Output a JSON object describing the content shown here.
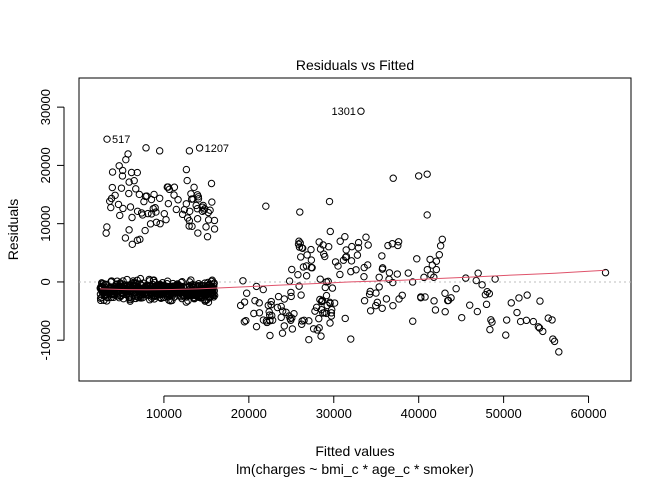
{
  "chart_data": {
    "type": "scatter",
    "title": "Residuals vs Fitted",
    "xlabel": "Fitted values",
    "ylabel": "Residuals",
    "subtitle": "lm(charges ~ bmi_c * age_c * smoker)",
    "xlim": [
      0,
      65000
    ],
    "ylim": [
      -17000,
      35000
    ],
    "x_ticks": [
      10000,
      20000,
      30000,
      40000,
      50000,
      60000
    ],
    "x_tick_labels": [
      "10000",
      "20000",
      "30000",
      "40000",
      "50000",
      "60000"
    ],
    "y_ticks": [
      -10000,
      0,
      10000,
      20000,
      30000
    ],
    "y_tick_labels": [
      "-10000",
      "0",
      "10000",
      "20000",
      "30000"
    ],
    "reference_line_y": 0,
    "grid": false,
    "colors": {
      "points": "#000000",
      "smoother": "#df536b",
      "reference": "#bebebe"
    },
    "annotations": [
      {
        "label": "1301",
        "x": 33200,
        "y": 29300
      },
      {
        "label": "517",
        "x": 3300,
        "y": 24500
      },
      {
        "label": "1207",
        "x": 14200,
        "y": 23000
      }
    ],
    "smoother": {
      "x": [
        2500,
        5000,
        8000,
        11000,
        14000,
        17000,
        20000,
        23000,
        26000,
        29000,
        32000,
        35000,
        38000,
        41000,
        44000,
        47000,
        50000,
        53000,
        56000,
        59000,
        62000
      ],
      "y": [
        -1200,
        -1300,
        -1350,
        -1300,
        -1200,
        -1000,
        -800,
        -600,
        -400,
        -200,
        0,
        150,
        300,
        500,
        700,
        900,
        1100,
        1300,
        1500,
        1750,
        2000
      ]
    },
    "point_clusters": [
      {
        "x_range": [
          2500,
          16000
        ],
        "y_center": -1500,
        "y_spread": 1300,
        "count": 560
      },
      {
        "x_range": [
          2500,
          16000
        ],
        "y_center": 14000,
        "y_spread": 6000,
        "count": 95
      },
      {
        "x_range": [
          19000,
          30000
        ],
        "y_center": -5000,
        "y_spread": 3500,
        "count": 75
      },
      {
        "x_range": [
          25000,
          43000
        ],
        "y_center": 4000,
        "y_spread": 3500,
        "count": 70
      },
      {
        "x_range": [
          30000,
          49000
        ],
        "y_center": -2500,
        "y_spread": 3000,
        "count": 40
      },
      {
        "x_range": [
          48000,
          57000
        ],
        "y_center": -5500,
        "y_spread": 3500,
        "count": 16
      }
    ],
    "points": [
      {
        "x": 33200,
        "y": 29300
      },
      {
        "x": 3300,
        "y": 24500
      },
      {
        "x": 14200,
        "y": 23000
      },
      {
        "x": 62000,
        "y": 1600
      },
      {
        "x": 56500,
        "y": -12000
      },
      {
        "x": 56000,
        "y": -10200
      },
      {
        "x": 55800,
        "y": -9800
      },
      {
        "x": 41000,
        "y": 18500
      },
      {
        "x": 40000,
        "y": 18200
      },
      {
        "x": 37000,
        "y": 17800
      },
      {
        "x": 9500,
        "y": 22500
      },
      {
        "x": 13000,
        "y": 22500
      },
      {
        "x": 22000,
        "y": 13000
      },
      {
        "x": 26000,
        "y": 12000
      },
      {
        "x": 29500,
        "y": 13800
      },
      {
        "x": 41000,
        "y": 11500
      },
      {
        "x": 32000,
        "y": -9800
      },
      {
        "x": 28500,
        "y": -9300
      },
      {
        "x": 53500,
        "y": -6800
      },
      {
        "x": 52000,
        "y": -6800
      },
      {
        "x": 48500,
        "y": -6500
      },
      {
        "x": 47000,
        "y": 1500
      },
      {
        "x": 49000,
        "y": 500
      }
    ]
  }
}
